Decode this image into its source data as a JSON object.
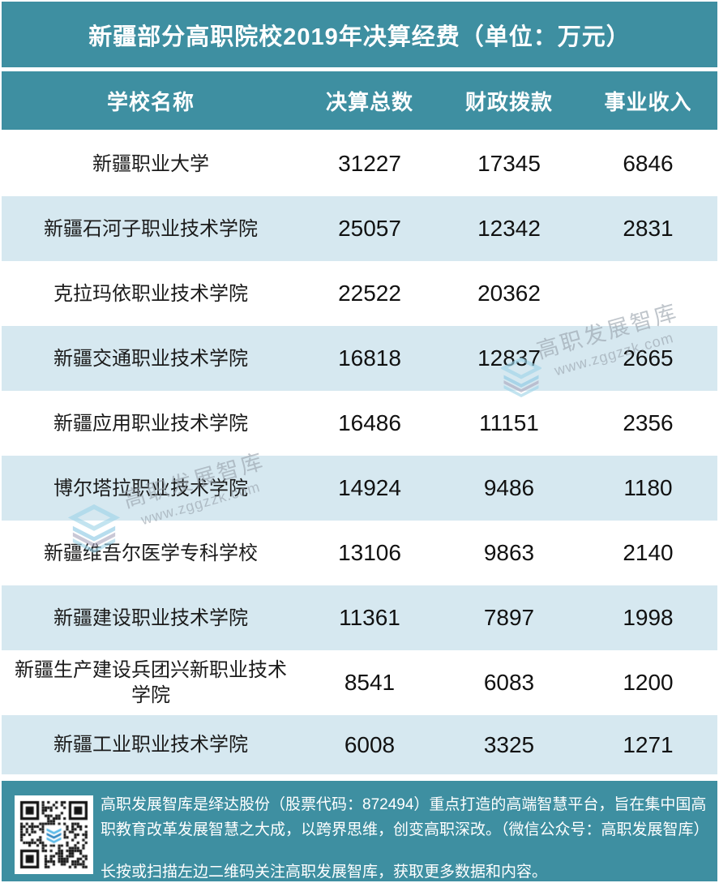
{
  "title": "新疆部分高职院校2019年决算经费（单位：万元）",
  "chart_data": {
    "type": "table",
    "title": "新疆部分高职院校2019年决算经费（单位：万元）",
    "columns": [
      "学校名称",
      "决算总数",
      "财政拨款",
      "事业收入"
    ],
    "rows": [
      {
        "school": "新疆职业大学",
        "total": "31227",
        "fiscal": "17345",
        "income": "6846"
      },
      {
        "school": "新疆石河子职业技术学院",
        "total": "25057",
        "fiscal": "12342",
        "income": "2831"
      },
      {
        "school": "克拉玛依职业技术学院",
        "total": "22522",
        "fiscal": "20362",
        "income": ""
      },
      {
        "school": "新疆交通职业技术学院",
        "total": "16818",
        "fiscal": "12837",
        "income": "2665"
      },
      {
        "school": "新疆应用职业技术学院",
        "total": "16486",
        "fiscal": "11151",
        "income": "2356"
      },
      {
        "school": "博尔塔拉职业技术学院",
        "total": "14924",
        "fiscal": "9486",
        "income": "1180"
      },
      {
        "school": "新疆维吾尔医学专科学校",
        "total": "13106",
        "fiscal": "9863",
        "income": "2140"
      },
      {
        "school": "新疆建设职业技术学院",
        "total": "11361",
        "fiscal": "7897",
        "income": "1998"
      },
      {
        "school": "新疆生产建设兵团兴新职业技术学院",
        "total": "8541",
        "fiscal": "6083",
        "income": "1200"
      },
      {
        "school": "新疆工业职业技术学院",
        "total": "6008",
        "fiscal": "3325",
        "income": "1271"
      }
    ]
  },
  "table": {
    "headers": [
      "学校名称",
      "决算总数",
      "财政拨款",
      "事业收入"
    ]
  },
  "watermark": {
    "brand": "高职发展智库",
    "url": "www.zggzzk.com"
  },
  "footer": {
    "intro": "高职发展智库是绎达股份（股票代码：872494）重点打造的高端智慧平台，旨在集中国高职教育改革发展智慧之大成，以跨界思维，创变高职深改。（微信公众号：高职发展智库）",
    "qr_hint": "长按或扫描左边二维码关注高职发展智库，获取更多数据和内容。"
  },
  "colors": {
    "accent_teal": "#3E8FA1",
    "row_alt_blue": "#D6E8F0",
    "watermark_gray": "#949EA8",
    "logo_light_blue": "#9FD4E8",
    "logo_lavender": "#AAA7BD"
  }
}
